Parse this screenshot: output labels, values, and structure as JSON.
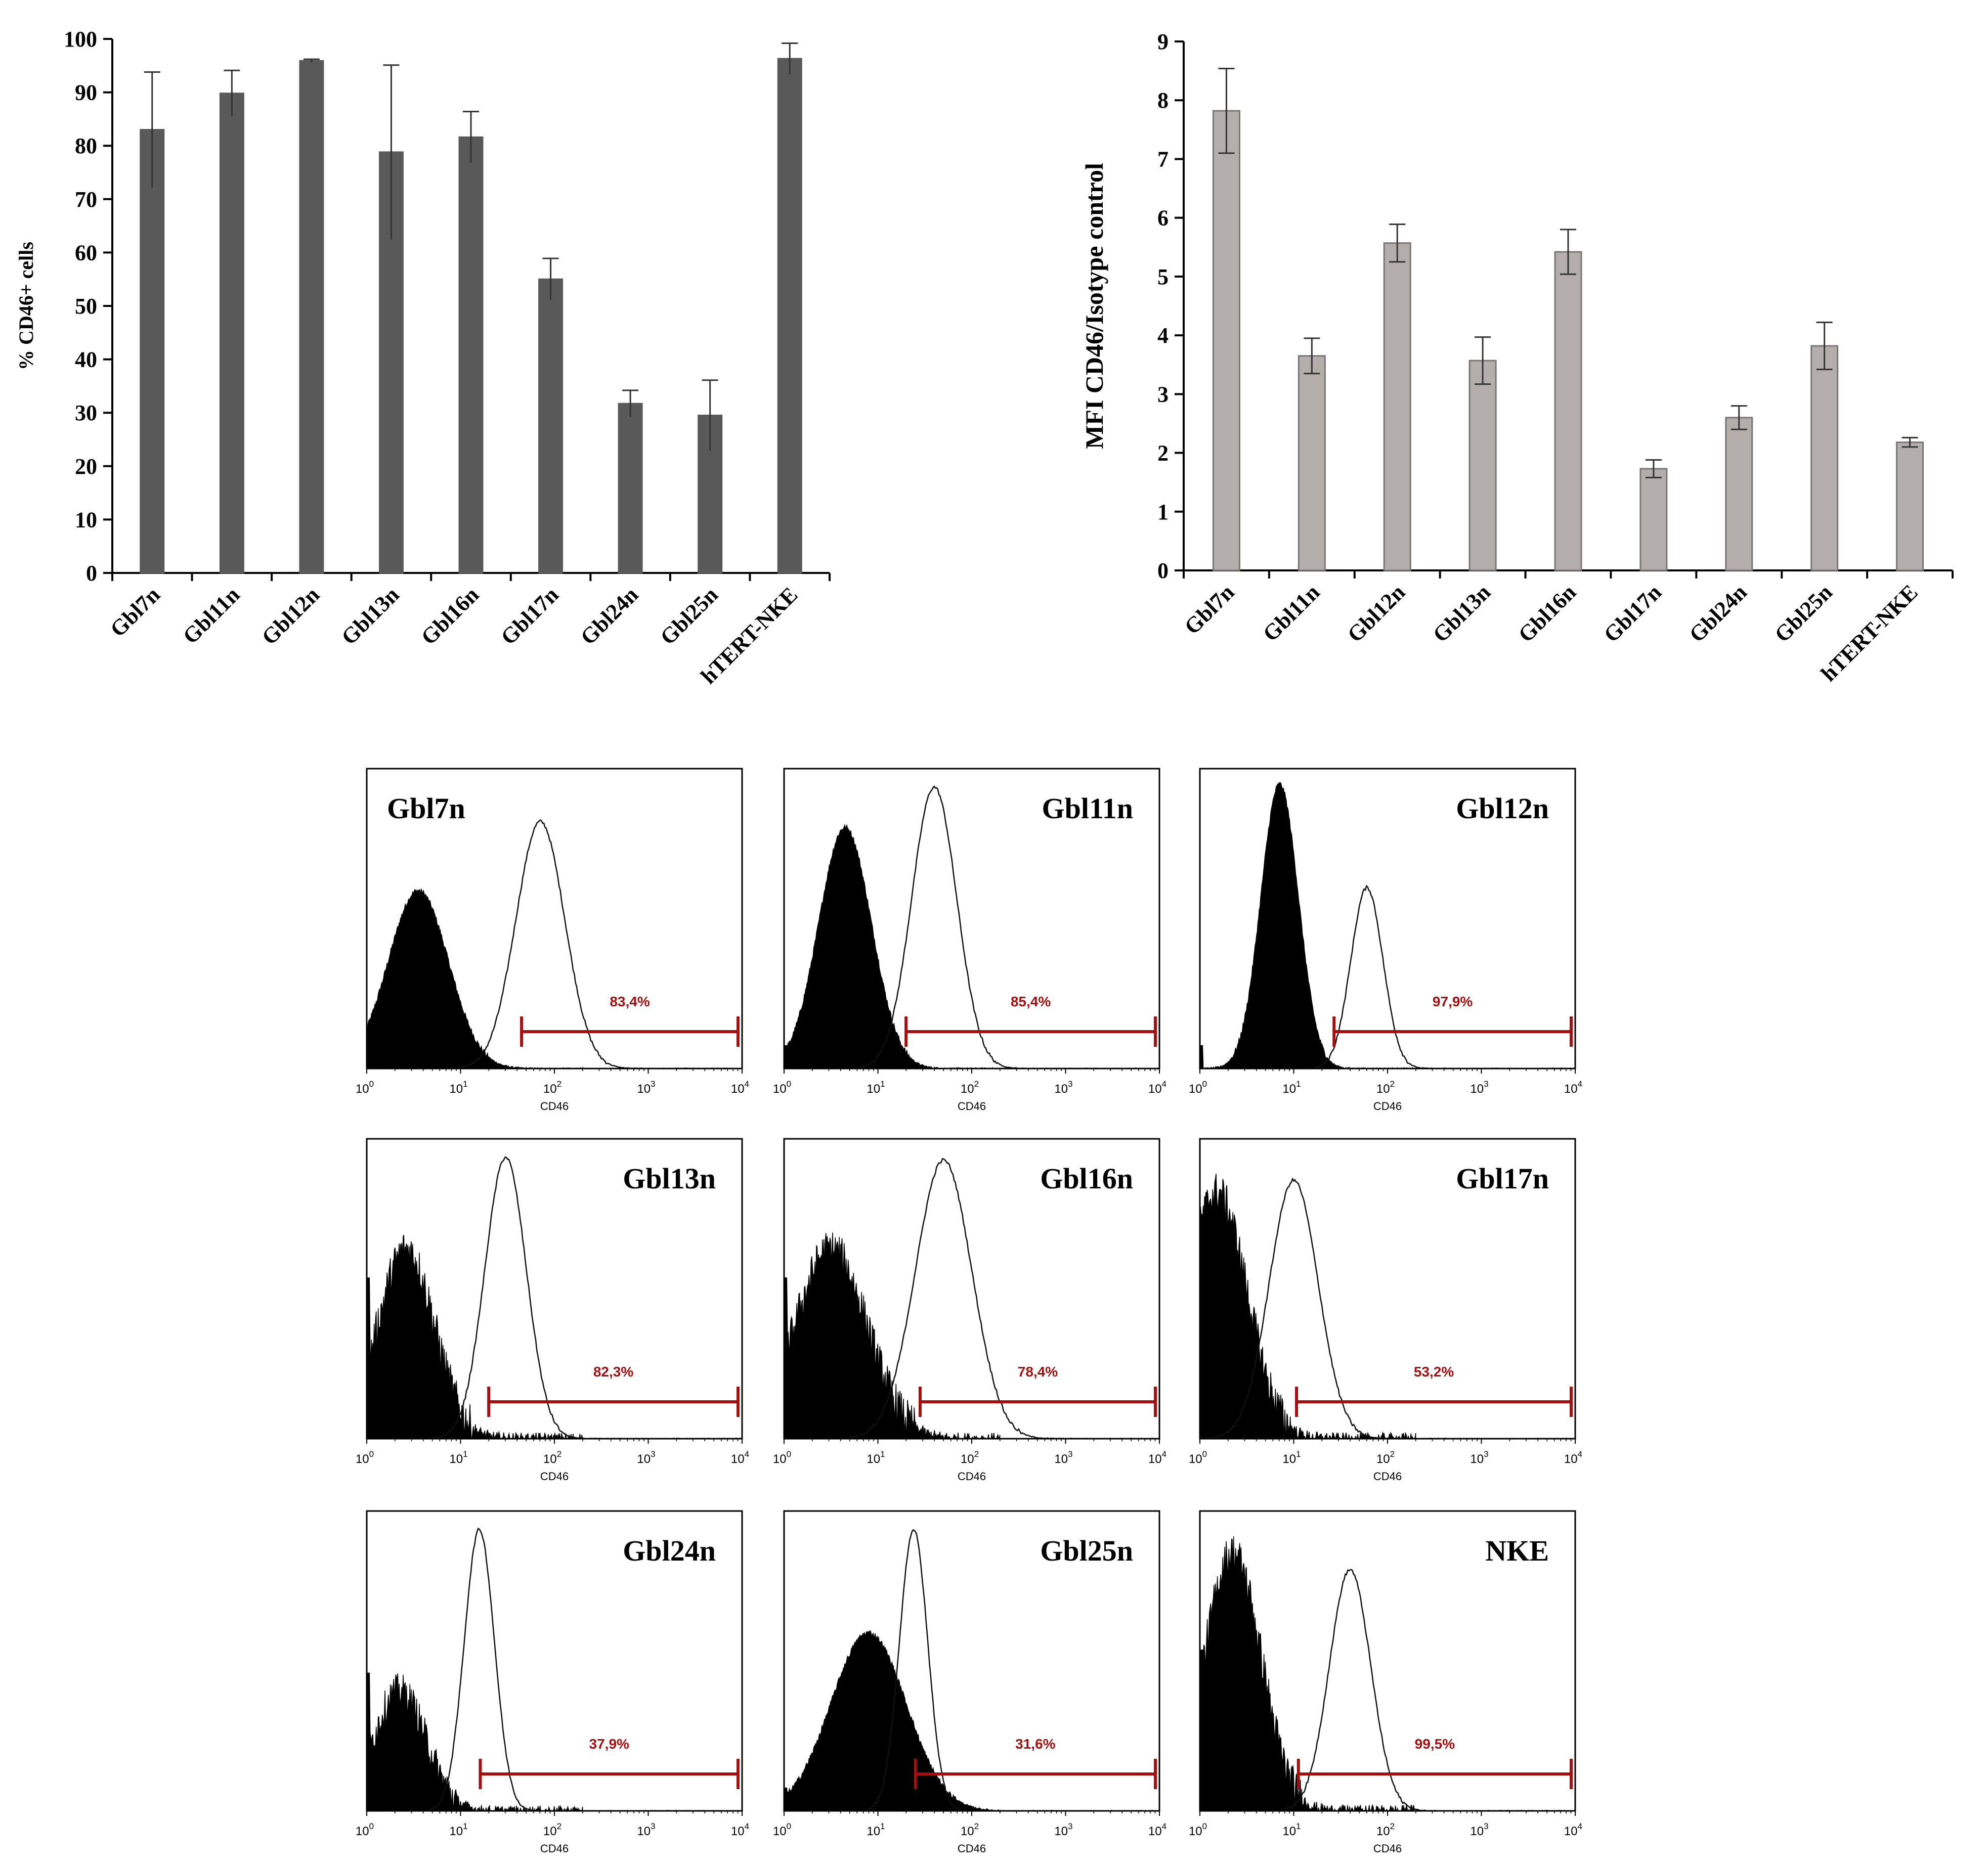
{
  "chart_data": [
    {
      "type": "bar",
      "id": "percent_cd46",
      "title": "",
      "xlabel": "",
      "ylabel": "% CD46+ cells",
      "ylim": [
        0,
        100
      ],
      "yticks": [
        0,
        10,
        20,
        30,
        40,
        50,
        60,
        70,
        80,
        90,
        100
      ],
      "categories": [
        "Gbl7n",
        "Gbl11n",
        "Gbl12n",
        "Gbl13n",
        "Gbl16n",
        "Gbl17n",
        "Gbl24n",
        "Gbl25n",
        "hTERT-NKE"
      ],
      "values": [
        83,
        89.8,
        95.9,
        78.8,
        81.6,
        55,
        31.7,
        29.5,
        96.3
      ],
      "errors": [
        10.8,
        4.3,
        0.3,
        16.3,
        4.8,
        3.9,
        2.5,
        6.6,
        2.9
      ],
      "bar_color": "#595959"
    },
    {
      "type": "bar",
      "id": "mfi_ratio",
      "title": "",
      "xlabel": "",
      "ylabel": "MFI CD46/Isotype control",
      "ylim": [
        0,
        9
      ],
      "yticks": [
        0,
        1,
        2,
        3,
        4,
        5,
        6,
        7,
        8,
        9
      ],
      "categories": [
        "Gbl7n",
        "Gbl11n",
        "Gbl12n",
        "Gbl13n",
        "Gbl16n",
        "Gbl17n",
        "Gbl24n",
        "Gbl25n",
        "hTERT-NKE"
      ],
      "values": [
        7.82,
        3.65,
        5.57,
        3.57,
        5.42,
        1.73,
        2.6,
        3.82,
        2.18
      ],
      "errors": [
        0.72,
        0.3,
        0.32,
        0.4,
        0.38,
        0.15,
        0.2,
        0.4,
        0.08
      ],
      "bar_color": "#b3aeab"
    },
    {
      "type": "histogram_panels",
      "id": "flow_histograms",
      "xlabel": "CD46",
      "x_scale": "log",
      "x_decades": [
        "10^0",
        "10^1",
        "10^2",
        "10^3",
        "10^4"
      ],
      "gate_color": "#a50f0f",
      "panels": [
        {
          "label": "Gbl7n",
          "percent": "83,4%",
          "label_pos": "left",
          "iso_peak": 0.55,
          "iso_width": 0.32,
          "iso_height": 0.62,
          "cd_peak": 1.85,
          "cd_width": 0.26,
          "cd_height": 0.86,
          "gate_start": 1.65,
          "iso_noise": 0.02
        },
        {
          "label": "Gbl11n",
          "percent": "85,4%",
          "label_pos": "right",
          "iso_peak": 0.65,
          "iso_width": 0.28,
          "iso_height": 0.84,
          "cd_peak": 1.6,
          "cd_width": 0.24,
          "cd_height": 0.98,
          "gate_start": 1.3,
          "iso_noise": 0.02
        },
        {
          "label": "Gbl12n",
          "percent": "97,9%",
          "label_pos": "right",
          "iso_peak": 0.85,
          "iso_width": 0.2,
          "iso_height": 0.99,
          "cd_peak": 1.78,
          "cd_width": 0.17,
          "cd_height": 0.63,
          "gate_start": 1.43,
          "iso_noise": 0.02
        },
        {
          "label": "Gbl13n",
          "percent": "82,3%",
          "label_pos": "right",
          "iso_peak": 0.42,
          "iso_width": 0.3,
          "iso_height": 0.66,
          "cd_peak": 1.48,
          "cd_width": 0.22,
          "cd_height": 0.98,
          "gate_start": 1.3,
          "iso_noise": 0.14
        },
        {
          "label": "Gbl16n",
          "percent": "78,4%",
          "label_pos": "right",
          "iso_peak": 0.5,
          "iso_width": 0.38,
          "iso_height": 0.66,
          "cd_peak": 1.7,
          "cd_width": 0.3,
          "cd_height": 0.97,
          "gate_start": 1.45,
          "iso_noise": 0.14
        },
        {
          "label": "Gbl17n",
          "percent": "53,2%",
          "label_pos": "right",
          "iso_peak": 0.18,
          "iso_width": 0.32,
          "iso_height": 0.86,
          "cd_peak": 1.0,
          "cd_width": 0.26,
          "cd_height": 0.9,
          "gate_start": 1.03,
          "iso_noise": 0.14
        },
        {
          "label": "Gbl24n",
          "percent": "37,9%",
          "label_pos": "right",
          "iso_peak": 0.35,
          "iso_width": 0.28,
          "iso_height": 0.42,
          "cd_peak": 1.2,
          "cd_width": 0.16,
          "cd_height": 0.98,
          "gate_start": 1.21,
          "iso_noise": 0.12
        },
        {
          "label": "Gbl25n",
          "percent": "31,6%",
          "label_pos": "right",
          "iso_peak": 0.9,
          "iso_width": 0.4,
          "iso_height": 0.62,
          "cd_peak": 1.38,
          "cd_width": 0.15,
          "cd_height": 0.98,
          "gate_start": 1.4,
          "iso_noise": 0.02
        },
        {
          "label": "NKE",
          "percent": "99,5%",
          "label_pos": "right",
          "iso_peak": 0.35,
          "iso_width": 0.3,
          "iso_height": 0.9,
          "cd_peak": 1.6,
          "cd_width": 0.22,
          "cd_height": 0.84,
          "gate_start": 1.05,
          "iso_noise": 0.14
        }
      ]
    }
  ]
}
